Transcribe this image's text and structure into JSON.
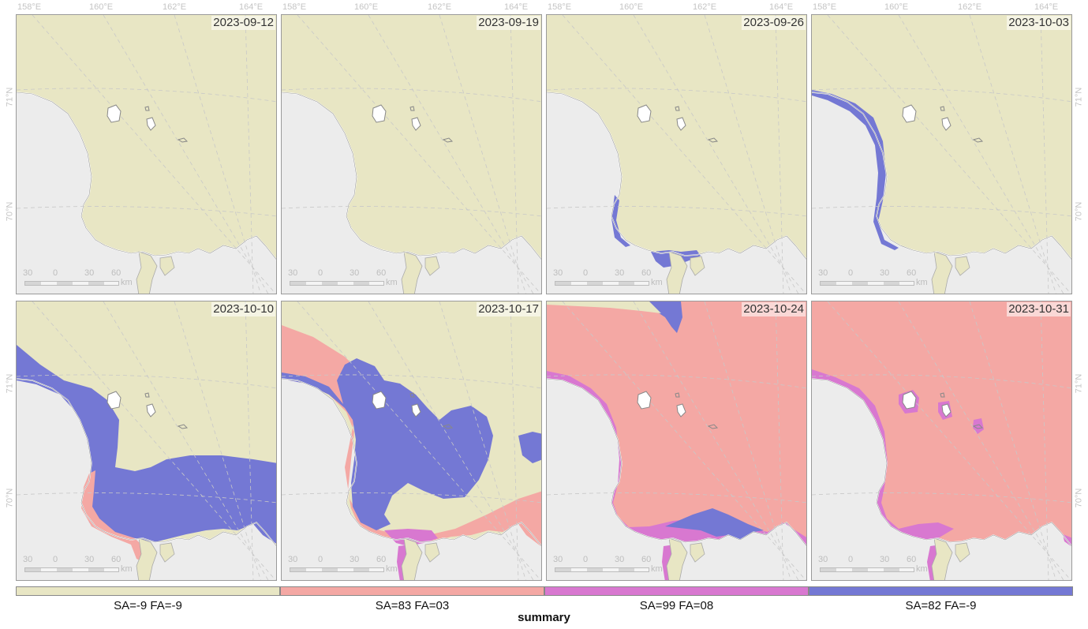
{
  "colors": {
    "land": "#ececec",
    "sa_m9": "#e8e6c4",
    "sa_83": "#f4a8a4",
    "sa_99": "#d878d0",
    "sa_82": "#7478d4",
    "grid": "#c8c8c8"
  },
  "axes": {
    "lon_labels": [
      "158°E",
      "160°E",
      "162°E",
      "164°E"
    ],
    "lat_labels": [
      "71°N",
      "70°N"
    ]
  },
  "scalebar": {
    "ticks": [
      "30",
      "0",
      "30",
      "60"
    ],
    "unit": "km"
  },
  "panels": [
    {
      "date": "2023-09-12",
      "blue_fringe": "none"
    },
    {
      "date": "2023-09-19",
      "blue_fringe": "none"
    },
    {
      "date": "2023-09-26",
      "blue_fringe": "small"
    },
    {
      "date": "2023-10-03",
      "blue_fringe": "coastal"
    },
    {
      "date": "2023-10-10",
      "blue_fringe": "wide"
    },
    {
      "date": "2023-10-17",
      "blue_fringe": "mixed"
    },
    {
      "date": "2023-10-24",
      "blue_fringe": "pink"
    },
    {
      "date": "2023-10-31",
      "blue_fringe": "pink-full"
    }
  ],
  "legend": {
    "title": "summary",
    "entries": [
      {
        "label": "SA=-9 FA=-9",
        "color": "#e8e6c4"
      },
      {
        "label": "SA=83 FA=03",
        "color": "#f4a8a4"
      },
      {
        "label": "SA=99 FA=08",
        "color": "#d878d0"
      },
      {
        "label": "SA=82 FA=-9",
        "color": "#7478d4"
      }
    ]
  }
}
